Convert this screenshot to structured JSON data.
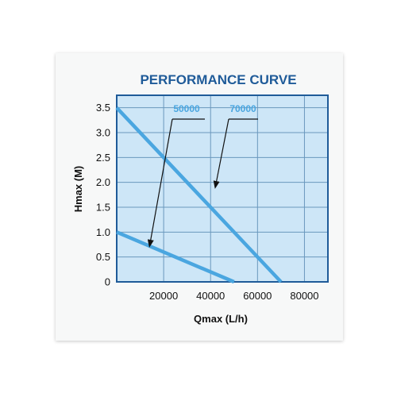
{
  "colors": {
    "plot_bg": "#cde6f7",
    "grid": "#6a98bd",
    "frame": "#1f5b99",
    "line": "#4aa6e0",
    "title": "#1f5b99",
    "label": "#111111",
    "arrow": "#111111"
  },
  "chart_data": {
    "type": "line",
    "title": "PERFORMANCE CURVE",
    "xlabel": "Qmax (L/h)",
    "ylabel": "Hmax (M)",
    "xlim": [
      0,
      90000
    ],
    "ylim": [
      0,
      3.75
    ],
    "xticks": [
      20000,
      40000,
      60000,
      80000
    ],
    "xtick_labels": [
      "20000",
      "40000",
      "60000",
      "80000"
    ],
    "yticks": [
      0,
      0.5,
      1.0,
      1.5,
      2.0,
      2.5,
      3.0,
      3.5
    ],
    "ytick_labels": [
      "0",
      "0.5",
      "1.0",
      "1.5",
      "2.0",
      "2.5",
      "3.0",
      "3.5"
    ],
    "grid": true,
    "series": [
      {
        "name": "50000",
        "x": [
          0,
          50000
        ],
        "y": [
          1.0,
          0
        ]
      },
      {
        "name": "70000",
        "x": [
          0,
          70000
        ],
        "y": [
          3.5,
          0
        ]
      }
    ],
    "annotations": [
      {
        "label": "50000",
        "series": "50000",
        "point": {
          "x": 14000,
          "y": 0.72
        }
      },
      {
        "label": "70000",
        "series": "70000",
        "point": {
          "x": 42000,
          "y": 1.9
        }
      }
    ]
  }
}
